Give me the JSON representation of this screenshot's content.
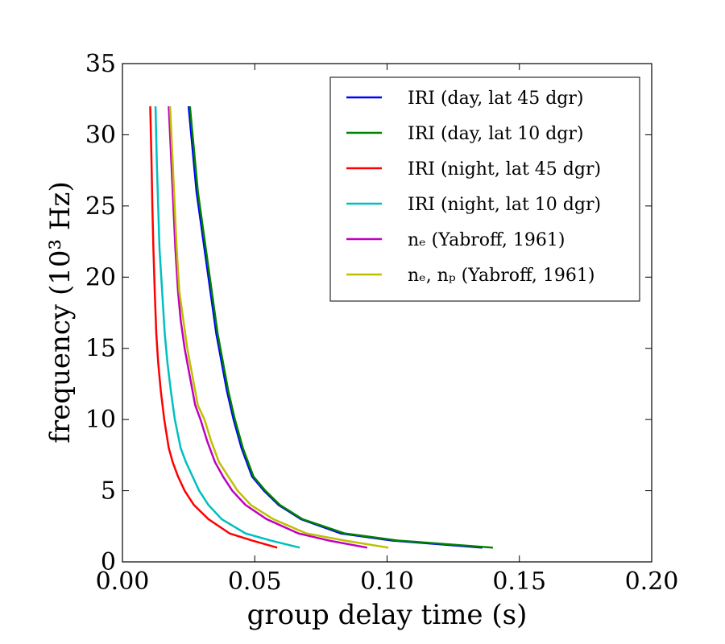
{
  "chart_data": {
    "type": "line",
    "xlabel": "group delay time (s)",
    "ylabel": "frequency (10³ Hz)",
    "xlim": [
      0.0,
      0.2
    ],
    "ylim": [
      0,
      35
    ],
    "xticks": [
      "0.00",
      "0.05",
      "0.10",
      "0.15",
      "0.20"
    ],
    "yticks": [
      "0",
      "5",
      "10",
      "15",
      "20",
      "25",
      "30",
      "35"
    ],
    "grid": false,
    "legend_position": "top-right",
    "series": [
      {
        "name": "IRI (day, lat 45 dgr)",
        "color": "#0000ff",
        "points": [
          [
            0.025,
            32
          ],
          [
            0.026,
            30
          ],
          [
            0.027,
            28
          ],
          [
            0.028,
            26
          ],
          [
            0.0295,
            24
          ],
          [
            0.031,
            22
          ],
          [
            0.0325,
            20
          ],
          [
            0.034,
            18
          ],
          [
            0.0355,
            16
          ],
          [
            0.0375,
            14
          ],
          [
            0.0395,
            12
          ],
          [
            0.042,
            10
          ],
          [
            0.045,
            8
          ],
          [
            0.049,
            6
          ],
          [
            0.0535,
            5
          ],
          [
            0.059,
            4
          ],
          [
            0.0675,
            3
          ],
          [
            0.0825,
            2
          ],
          [
            0.102,
            1.5
          ],
          [
            0.136,
            1
          ]
        ]
      },
      {
        "name": "IRI (day, lat 10 dgr)",
        "color": "#008000",
        "points": [
          [
            0.0255,
            32
          ],
          [
            0.0265,
            30
          ],
          [
            0.0275,
            28
          ],
          [
            0.0285,
            26
          ],
          [
            0.03,
            24
          ],
          [
            0.0315,
            22
          ],
          [
            0.033,
            20
          ],
          [
            0.0345,
            18
          ],
          [
            0.036,
            16
          ],
          [
            0.038,
            14
          ],
          [
            0.04,
            12
          ],
          [
            0.0425,
            10
          ],
          [
            0.0455,
            8
          ],
          [
            0.0495,
            6
          ],
          [
            0.054,
            5
          ],
          [
            0.0595,
            4
          ],
          [
            0.068,
            3
          ],
          [
            0.084,
            2
          ],
          [
            0.104,
            1.5
          ],
          [
            0.14,
            1
          ]
        ]
      },
      {
        "name": "IRI (night, lat 45 dgr)",
        "color": "#ff0000",
        "points": [
          [
            0.0105,
            32
          ],
          [
            0.011,
            28
          ],
          [
            0.0113,
            25
          ],
          [
            0.0117,
            22
          ],
          [
            0.0122,
            19
          ],
          [
            0.0128,
            16
          ],
          [
            0.0135,
            14
          ],
          [
            0.0145,
            12
          ],
          [
            0.0158,
            10
          ],
          [
            0.0175,
            8
          ],
          [
            0.019,
            7
          ],
          [
            0.021,
            6
          ],
          [
            0.0235,
            5
          ],
          [
            0.027,
            4
          ],
          [
            0.0325,
            3
          ],
          [
            0.0405,
            2
          ],
          [
            0.049,
            1.5
          ],
          [
            0.0585,
            1
          ]
        ]
      },
      {
        "name": "IRI (night, lat 10 dgr)",
        "color": "#00bfbf",
        "points": [
          [
            0.0125,
            32
          ],
          [
            0.013,
            28
          ],
          [
            0.0135,
            25
          ],
          [
            0.014,
            22
          ],
          [
            0.015,
            19
          ],
          [
            0.016,
            16
          ],
          [
            0.017,
            14
          ],
          [
            0.0183,
            12
          ],
          [
            0.0198,
            10
          ],
          [
            0.022,
            8
          ],
          [
            0.024,
            7
          ],
          [
            0.0265,
            6
          ],
          [
            0.029,
            5
          ],
          [
            0.0325,
            4
          ],
          [
            0.0375,
            3
          ],
          [
            0.0465,
            2
          ],
          [
            0.056,
            1.5
          ],
          [
            0.067,
            1
          ]
        ]
      },
      {
        "name": "nₑ (Yabroff, 1961)",
        "color": "#bf00bf",
        "points": [
          [
            0.0175,
            32
          ],
          [
            0.018,
            30
          ],
          [
            0.019,
            26
          ],
          [
            0.02,
            22
          ],
          [
            0.021,
            19
          ],
          [
            0.022,
            17
          ],
          [
            0.0235,
            15
          ],
          [
            0.0255,
            13
          ],
          [
            0.0275,
            11
          ],
          [
            0.0295,
            10
          ],
          [
            0.032,
            8.5
          ],
          [
            0.035,
            7
          ],
          [
            0.038,
            6
          ],
          [
            0.0415,
            5
          ],
          [
            0.0465,
            4
          ],
          [
            0.0545,
            3
          ],
          [
            0.0665,
            2
          ],
          [
            0.078,
            1.5
          ],
          [
            0.0925,
            1
          ]
        ]
      },
      {
        "name": "nₑ, nₚ (Yabroff, 1961)",
        "color": "#bfbf00",
        "points": [
          [
            0.018,
            32
          ],
          [
            0.0185,
            30
          ],
          [
            0.0195,
            26
          ],
          [
            0.0205,
            22
          ],
          [
            0.0215,
            19
          ],
          [
            0.023,
            17
          ],
          [
            0.0245,
            15
          ],
          [
            0.0265,
            13
          ],
          [
            0.0285,
            11
          ],
          [
            0.031,
            10
          ],
          [
            0.0335,
            8.5
          ],
          [
            0.0365,
            7
          ],
          [
            0.04,
            6
          ],
          [
            0.0435,
            5
          ],
          [
            0.0485,
            4
          ],
          [
            0.057,
            3
          ],
          [
            0.0695,
            2
          ],
          [
            0.084,
            1.5
          ],
          [
            0.1005,
            1
          ]
        ]
      }
    ]
  }
}
